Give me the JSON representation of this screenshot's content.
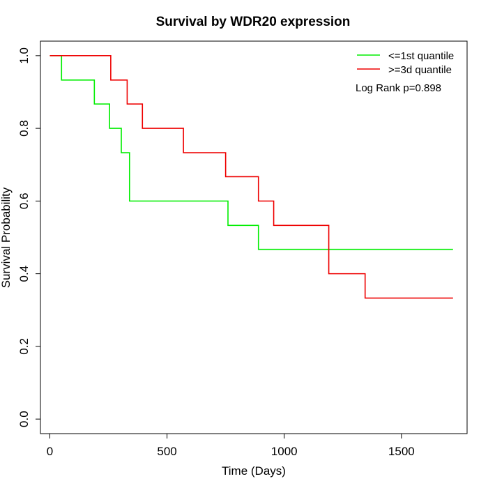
{
  "chart_data": {
    "type": "line",
    "step": true,
    "title": "Survival by WDR20 expression",
    "xlabel": "Time (Days)",
    "ylabel": "Survival Probability",
    "xlim": [
      -40,
      1780
    ],
    "ylim": [
      -0.04,
      1.04
    ],
    "x_ticks": [
      0,
      500,
      1000,
      1500
    ],
    "y_ticks": [
      0.0,
      0.2,
      0.4,
      0.6,
      0.8,
      1.0
    ],
    "x_tick_labels": [
      "0",
      "500",
      "1000",
      "1500"
    ],
    "y_tick_labels": [
      "0.0",
      "0.2",
      "0.4",
      "0.6",
      "0.8",
      "1.0"
    ],
    "grid": false,
    "legend_position": "top-right",
    "annotation": "Log Rank p=0.898",
    "series": [
      {
        "name": "<=1st quantile",
        "color": "#00ee00",
        "points": [
          [
            0,
            1.0
          ],
          [
            50,
            0.933
          ],
          [
            190,
            0.867
          ],
          [
            255,
            0.8
          ],
          [
            305,
            0.733
          ],
          [
            340,
            0.6
          ],
          [
            760,
            0.533
          ],
          [
            890,
            0.467
          ],
          [
            1720,
            0.467
          ]
        ]
      },
      {
        "name": ">=3d quantile",
        "color": "#ee0000",
        "points": [
          [
            0,
            1.0
          ],
          [
            260,
            0.933
          ],
          [
            330,
            0.867
          ],
          [
            395,
            0.8
          ],
          [
            570,
            0.733
          ],
          [
            750,
            0.667
          ],
          [
            890,
            0.6
          ],
          [
            955,
            0.533
          ],
          [
            1190,
            0.4
          ],
          [
            1345,
            0.333
          ],
          [
            1720,
            0.333
          ]
        ]
      }
    ]
  }
}
